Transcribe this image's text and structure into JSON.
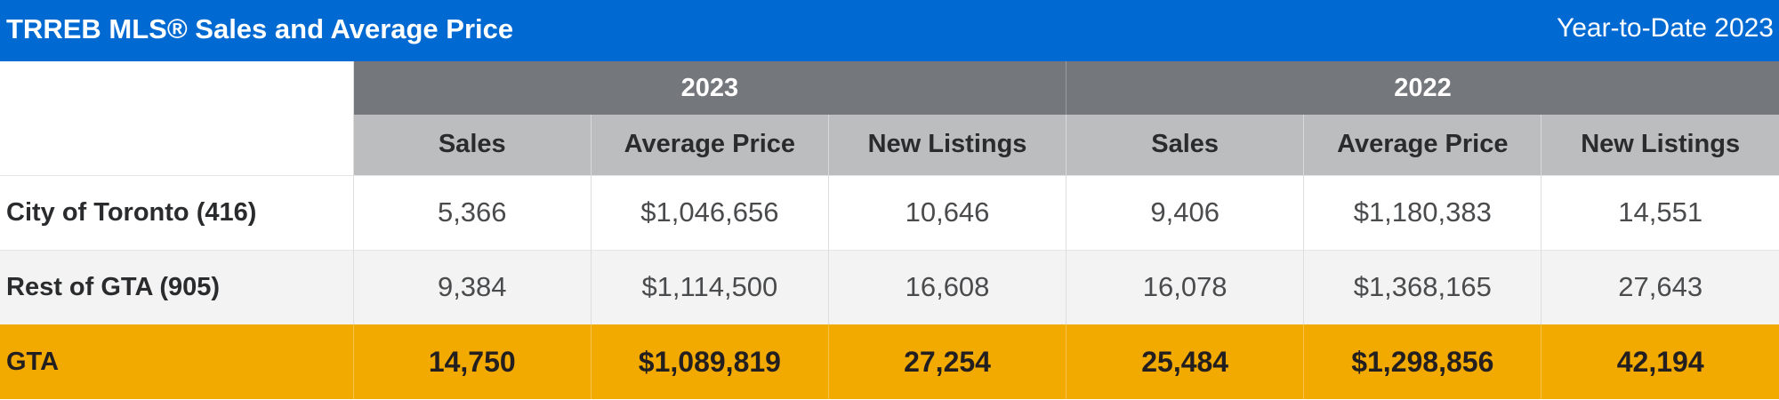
{
  "header": {
    "title": "TRREB MLS® Sales and Average Price",
    "period": "Year-to-Date 2023"
  },
  "table": {
    "years": [
      "2023",
      "2022"
    ],
    "columns": [
      "Sales",
      "Average Price",
      "New Listings",
      "Sales",
      "Average Price",
      "New Listings"
    ],
    "rows": [
      {
        "label": "City of Toronto (416)",
        "values": [
          "5,366",
          "$1,046,656",
          "10,646",
          "9,406",
          "$1,180,383",
          "14,551"
        ]
      },
      {
        "label": "Rest of GTA (905)",
        "values": [
          "9,384",
          "$1,114,500",
          "16,608",
          "16,078",
          "$1,368,165",
          "27,643"
        ]
      },
      {
        "label": "GTA",
        "values": [
          "14,750",
          "$1,089,819",
          "27,254",
          "25,484",
          "$1,298,856",
          "42,194"
        ]
      }
    ]
  },
  "colors": {
    "title_bar": "#0069d2",
    "year_header": "#74777b",
    "column_header": "#bcbdbe",
    "total_row": "#f2a900"
  }
}
